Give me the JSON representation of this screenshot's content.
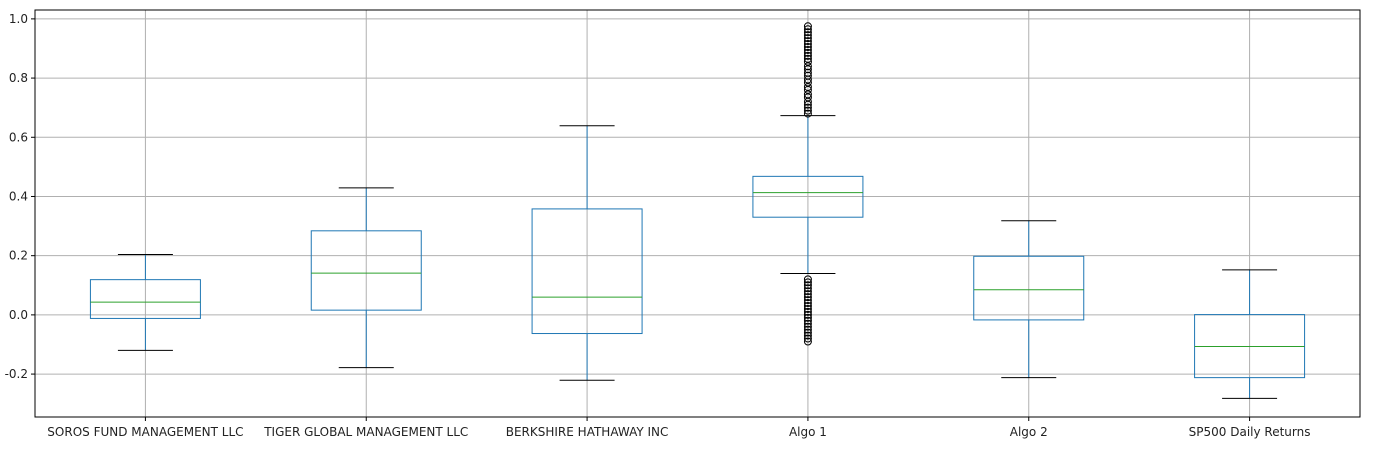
{
  "chart_data": {
    "type": "box",
    "title": "",
    "xlabel": "",
    "ylabel": "",
    "ylim": [
      -0.345,
      1.03
    ],
    "yticks": [
      -0.2,
      0.0,
      0.2,
      0.4,
      0.6,
      0.8,
      1.0
    ],
    "ytick_labels": [
      "-0.2",
      "0.0",
      "0.2",
      "0.4",
      "0.6",
      "0.8",
      "1.0"
    ],
    "grid": true,
    "colors": {
      "box": "#1f77b4",
      "median": "#2ca02c",
      "whisker_cap": "#000000",
      "outlier": "#000000",
      "grid": "#b0b0b0",
      "axis": "#000000"
    },
    "categories": [
      "SOROS FUND MANAGEMENT LLC",
      "TIGER GLOBAL MANAGEMENT LLC",
      "BERKSHIRE HATHAWAY INC",
      "Algo 1",
      "Algo 2",
      "SP500 Daily Returns"
    ],
    "boxes": [
      {
        "whisker_low": -0.12,
        "q1": -0.012,
        "median": 0.043,
        "q3": 0.119,
        "whisker_high": 0.204,
        "outliers": []
      },
      {
        "whisker_low": -0.178,
        "q1": 0.016,
        "median": 0.141,
        "q3": 0.284,
        "whisker_high": 0.429,
        "outliers": []
      },
      {
        "whisker_low": -0.221,
        "q1": -0.063,
        "median": 0.06,
        "q3": 0.358,
        "whisker_high": 0.639,
        "outliers": []
      },
      {
        "whisker_low": 0.14,
        "q1": 0.33,
        "median": 0.413,
        "q3": 0.468,
        "whisker_high": 0.673,
        "outliers": [
          0.975,
          0.965,
          0.955,
          0.945,
          0.935,
          0.925,
          0.915,
          0.905,
          0.895,
          0.885,
          0.875,
          0.865,
          0.855,
          0.84,
          0.83,
          0.818,
          0.808,
          0.795,
          0.785,
          0.77,
          0.76,
          0.745,
          0.735,
          0.72,
          0.71,
          0.7,
          0.69,
          0.68,
          0.12,
          0.11,
          0.1,
          0.09,
          0.08,
          0.07,
          0.06,
          0.05,
          0.04,
          0.03,
          0.02,
          0.01,
          0.0,
          -0.01,
          -0.02,
          -0.03,
          -0.04,
          -0.05,
          -0.06,
          -0.07,
          -0.08,
          -0.09
        ]
      },
      {
        "whisker_low": -0.212,
        "q1": -0.017,
        "median": 0.085,
        "q3": 0.198,
        "whisker_high": 0.318,
        "outliers": []
      },
      {
        "whisker_low": -0.282,
        "q1": -0.212,
        "median": -0.107,
        "q3": 0.001,
        "whisker_high": 0.152,
        "outliers": []
      }
    ]
  }
}
